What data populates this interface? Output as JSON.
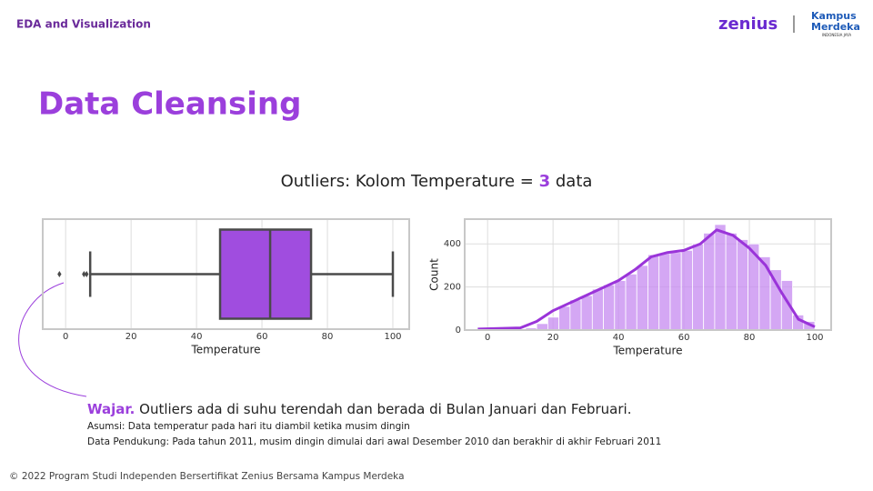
{
  "header": {
    "section": "EDA and Visualization",
    "logo": "zenius",
    "partner_top": "Kampus",
    "partner_bottom": "Merdeka",
    "partner_tag": "INDONESIA JAYA"
  },
  "title": "Data Cleansing",
  "subtitle": {
    "prefix": "Outliers: Kolom Temperature =",
    "count": 3,
    "suffix": "data"
  },
  "chart_data": [
    {
      "type": "box",
      "xlabel": "Temperature",
      "xlim": [
        -7,
        105
      ],
      "xticks": [
        0,
        20,
        40,
        60,
        80,
        100
      ],
      "grid": true,
      "color": "#a04ddf",
      "edge_color": "#4a4a4a",
      "whisker_low": 7.5,
      "q1": 47.2,
      "median": 62.5,
      "q3": 75,
      "whisker_high": 100,
      "outliers": [
        -1.9,
        5.6,
        6.4
      ]
    },
    {
      "type": "histogram",
      "xlabel": "Temperature",
      "ylabel": "Count",
      "xlim": [
        -7,
        105
      ],
      "ylim": [
        0,
        515
      ],
      "xticks": [
        0,
        20,
        40,
        60,
        80,
        100
      ],
      "yticks": [
        0,
        200,
        400
      ],
      "grid": true,
      "color": "#c58af0",
      "line_color": "#9a34d9",
      "bins": [
        -2,
        1.4,
        4.8,
        8.2,
        11.6,
        15,
        18.4,
        21.8,
        25.2,
        28.6,
        32,
        35.4,
        38.8,
        42.2,
        45.6,
        49,
        52.4,
        55.8,
        59.2,
        62.6,
        66,
        69.4,
        72.8,
        76.2,
        79.6,
        83,
        86.4,
        89.8,
        93.2,
        96.6,
        100
      ],
      "counts": [
        5,
        5,
        5,
        5,
        10,
        30,
        60,
        110,
        140,
        160,
        190,
        210,
        230,
        260,
        300,
        350,
        355,
        360,
        370,
        400,
        450,
        490,
        450,
        420,
        400,
        340,
        280,
        230,
        70,
        40
      ],
      "kde": {
        "x": [
          -3,
          10,
          15,
          20,
          30,
          40,
          45,
          50,
          55,
          60,
          65,
          70,
          75,
          80,
          85,
          90,
          95,
          100
        ],
        "y": [
          5,
          10,
          40,
          90,
          160,
          230,
          280,
          340,
          360,
          370,
          400,
          465,
          440,
          380,
          300,
          170,
          50,
          15
        ]
      }
    }
  ],
  "notes": {
    "lead": "Wajar.",
    "text": "Outliers ada di suhu terendah dan berada di Bulan Januari dan Februari.",
    "assumption": "Asumsi: Data temperatur pada hari itu diambil ketika musim dingin",
    "support": "Data Pendukung: Pada tahun 2011, musim dingin dimulai dari awal Desember 2010 dan berakhir di akhir Februari 2011"
  },
  "footer": "© 2022 Program Studi Independen Bersertifikat Zenius Bersama Kampus Merdeka"
}
